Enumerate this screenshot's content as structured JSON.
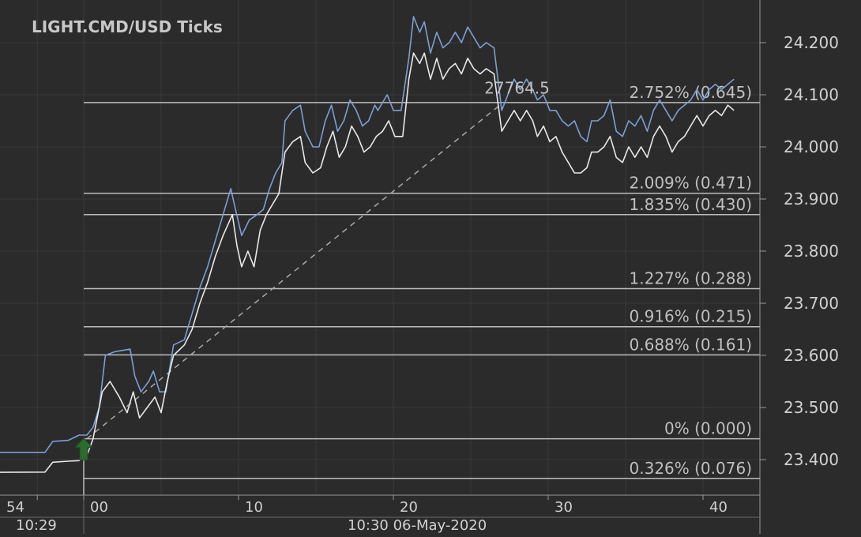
{
  "chart_data": {
    "type": "line",
    "title": "LIGHT.CMD/USD  Ticks",
    "symbol": "LIGHT.CMD/USD",
    "timeframe": "Ticks",
    "x_tick_labels": [
      "54",
      "00",
      "10",
      "20",
      "30",
      "40"
    ],
    "x_sub_labels": [
      "10:29",
      "10:30 06-May-2020"
    ],
    "y_tick_labels": [
      "24.200",
      "24.100",
      "24.000",
      "23.900",
      "23.800",
      "23.700",
      "23.600",
      "23.500",
      "23.400"
    ],
    "y_ticks": [
      24.2,
      24.1,
      24.0,
      23.9,
      23.8,
      23.7,
      23.6,
      23.5,
      23.4
    ],
    "ylim": [
      23.345,
      24.28
    ],
    "grid": true,
    "series": [
      {
        "role": "ask",
        "color": "#7b9fd4",
        "points": [
          [
            -10,
            23.414
          ],
          [
            -2.5,
            23.414
          ],
          [
            -2.0,
            23.435
          ],
          [
            -1.0,
            23.437
          ],
          [
            -0.3,
            23.447
          ],
          [
            0.2,
            23.447
          ],
          [
            0.6,
            23.462
          ],
          [
            1.0,
            23.5
          ],
          [
            1.4,
            23.6
          ],
          [
            2.0,
            23.607
          ],
          [
            3.0,
            23.612
          ],
          [
            3.3,
            23.56
          ],
          [
            3.7,
            23.53
          ],
          [
            4.2,
            23.55
          ],
          [
            4.5,
            23.57
          ],
          [
            4.9,
            23.53
          ],
          [
            5.3,
            23.53
          ],
          [
            5.8,
            23.62
          ],
          [
            6.5,
            23.63
          ],
          [
            7.0,
            23.68
          ],
          [
            7.5,
            23.73
          ],
          [
            8.0,
            23.77
          ],
          [
            8.5,
            23.82
          ],
          [
            9.0,
            23.87
          ],
          [
            9.5,
            23.92
          ],
          [
            9.8,
            23.88
          ],
          [
            10.2,
            23.83
          ],
          [
            10.7,
            23.86
          ],
          [
            11.2,
            23.87
          ],
          [
            11.6,
            23.88
          ],
          [
            12.0,
            23.92
          ],
          [
            12.4,
            23.95
          ],
          [
            12.8,
            23.97
          ],
          [
            13.0,
            24.05
          ],
          [
            13.5,
            24.07
          ],
          [
            14.0,
            24.08
          ],
          [
            14.3,
            24.03
          ],
          [
            14.8,
            24.0
          ],
          [
            15.2,
            24.0
          ],
          [
            15.6,
            24.05
          ],
          [
            16.0,
            24.08
          ],
          [
            16.4,
            24.03
          ],
          [
            16.8,
            24.05
          ],
          [
            17.2,
            24.09
          ],
          [
            17.6,
            24.07
          ],
          [
            18.0,
            24.04
          ],
          [
            18.4,
            24.05
          ],
          [
            18.8,
            24.08
          ],
          [
            19.0,
            24.07
          ],
          [
            19.2,
            24.08
          ],
          [
            19.6,
            24.1
          ],
          [
            20.0,
            24.07
          ],
          [
            20.5,
            24.07
          ],
          [
            21.0,
            24.17
          ],
          [
            21.3,
            24.25
          ],
          [
            21.7,
            24.22
          ],
          [
            22.0,
            24.24
          ],
          [
            22.4,
            24.18
          ],
          [
            22.8,
            24.22
          ],
          [
            23.2,
            24.19
          ],
          [
            23.6,
            24.2
          ],
          [
            24.0,
            24.22
          ],
          [
            24.4,
            24.2
          ],
          [
            24.8,
            24.23
          ],
          [
            25.2,
            24.21
          ],
          [
            25.6,
            24.19
          ],
          [
            26.0,
            24.2
          ],
          [
            26.5,
            24.19
          ],
          [
            27.0,
            24.07
          ],
          [
            27.4,
            24.1
          ],
          [
            27.8,
            24.13
          ],
          [
            28.2,
            24.11
          ],
          [
            28.6,
            24.13
          ],
          [
            29.0,
            24.11
          ],
          [
            29.3,
            24.09
          ],
          [
            29.7,
            24.1
          ],
          [
            30.1,
            24.07
          ],
          [
            30.5,
            24.07
          ],
          [
            30.9,
            24.05
          ],
          [
            31.3,
            24.04
          ],
          [
            31.7,
            24.05
          ],
          [
            32.1,
            24.02
          ],
          [
            32.5,
            24.01
          ],
          [
            32.8,
            24.05
          ],
          [
            33.2,
            24.05
          ],
          [
            33.6,
            24.06
          ],
          [
            34.0,
            24.09
          ],
          [
            34.4,
            24.03
          ],
          [
            34.8,
            24.02
          ],
          [
            35.2,
            24.05
          ],
          [
            35.6,
            24.04
          ],
          [
            36.0,
            24.06
          ],
          [
            36.4,
            24.03
          ],
          [
            36.8,
            24.07
          ],
          [
            37.2,
            24.09
          ],
          [
            37.6,
            24.07
          ],
          [
            38.0,
            24.05
          ],
          [
            38.4,
            24.07
          ],
          [
            38.8,
            24.08
          ],
          [
            39.2,
            24.09
          ],
          [
            39.6,
            24.11
          ],
          [
            40.0,
            24.09
          ],
          [
            40.4,
            24.11
          ],
          [
            40.8,
            24.12
          ],
          [
            41.2,
            24.11
          ],
          [
            41.6,
            24.12
          ],
          [
            42.0,
            24.13
          ]
        ]
      },
      {
        "role": "bid",
        "color": "#e8e8e8",
        "points": [
          [
            -10,
            23.375
          ],
          [
            -2.5,
            23.376
          ],
          [
            -2.0,
            23.395
          ],
          [
            -1.0,
            23.397
          ],
          [
            -0.3,
            23.398
          ],
          [
            0.2,
            23.407
          ],
          [
            0.6,
            23.44
          ],
          [
            1.0,
            23.5
          ],
          [
            1.2,
            23.53
          ],
          [
            1.7,
            23.55
          ],
          [
            2.3,
            23.52
          ],
          [
            2.8,
            23.49
          ],
          [
            3.2,
            23.53
          ],
          [
            3.6,
            23.48
          ],
          [
            4.1,
            23.5
          ],
          [
            4.6,
            23.52
          ],
          [
            5.0,
            23.49
          ],
          [
            5.4,
            23.55
          ],
          [
            5.8,
            23.6
          ],
          [
            6.5,
            23.62
          ],
          [
            7.0,
            23.65
          ],
          [
            7.5,
            23.7
          ],
          [
            8.0,
            23.74
          ],
          [
            8.5,
            23.79
          ],
          [
            9.0,
            23.83
          ],
          [
            9.6,
            23.87
          ],
          [
            9.9,
            23.81
          ],
          [
            10.2,
            23.77
          ],
          [
            10.6,
            23.8
          ],
          [
            11.0,
            23.77
          ],
          [
            11.4,
            23.84
          ],
          [
            11.8,
            23.87
          ],
          [
            12.2,
            23.89
          ],
          [
            12.6,
            23.91
          ],
          [
            13.0,
            23.99
          ],
          [
            13.5,
            24.01
          ],
          [
            14.0,
            24.02
          ],
          [
            14.3,
            23.97
          ],
          [
            14.8,
            23.95
          ],
          [
            15.3,
            23.96
          ],
          [
            15.7,
            24.0
          ],
          [
            16.1,
            24.03
          ],
          [
            16.5,
            23.98
          ],
          [
            16.9,
            24.0
          ],
          [
            17.3,
            24.04
          ],
          [
            17.7,
            24.02
          ],
          [
            18.1,
            23.99
          ],
          [
            18.5,
            24.0
          ],
          [
            18.9,
            24.02
          ],
          [
            19.3,
            24.03
          ],
          [
            19.7,
            24.05
          ],
          [
            20.1,
            24.02
          ],
          [
            20.6,
            24.02
          ],
          [
            21.0,
            24.13
          ],
          [
            21.3,
            24.18
          ],
          [
            21.7,
            24.16
          ],
          [
            22.0,
            24.18
          ],
          [
            22.4,
            24.13
          ],
          [
            22.8,
            24.17
          ],
          [
            23.2,
            24.13
          ],
          [
            23.6,
            24.15
          ],
          [
            24.0,
            24.16
          ],
          [
            24.4,
            24.14
          ],
          [
            24.8,
            24.17
          ],
          [
            25.2,
            24.15
          ],
          [
            25.6,
            24.14
          ],
          [
            26.0,
            24.15
          ],
          [
            26.5,
            24.14
          ],
          [
            27.0,
            24.03
          ],
          [
            27.4,
            24.05
          ],
          [
            27.8,
            24.07
          ],
          [
            28.2,
            24.05
          ],
          [
            28.6,
            24.07
          ],
          [
            29.0,
            24.05
          ],
          [
            29.3,
            24.02
          ],
          [
            29.7,
            24.04
          ],
          [
            30.1,
            24.01
          ],
          [
            30.5,
            24.02
          ],
          [
            30.9,
            23.99
          ],
          [
            31.3,
            23.97
          ],
          [
            31.7,
            23.95
          ],
          [
            32.1,
            23.95
          ],
          [
            32.5,
            23.96
          ],
          [
            32.8,
            23.99
          ],
          [
            33.2,
            23.99
          ],
          [
            33.6,
            24.0
          ],
          [
            34.0,
            24.02
          ],
          [
            34.4,
            23.98
          ],
          [
            34.8,
            23.97
          ],
          [
            35.2,
            24.0
          ],
          [
            35.6,
            23.98
          ],
          [
            36.0,
            24.0
          ],
          [
            36.4,
            23.98
          ],
          [
            36.8,
            24.02
          ],
          [
            37.2,
            24.04
          ],
          [
            37.6,
            24.02
          ],
          [
            38.0,
            23.99
          ],
          [
            38.4,
            24.01
          ],
          [
            38.8,
            24.02
          ],
          [
            39.2,
            24.04
          ],
          [
            39.6,
            24.06
          ],
          [
            40.0,
            24.04
          ],
          [
            40.4,
            24.06
          ],
          [
            40.8,
            24.07
          ],
          [
            41.2,
            24.06
          ],
          [
            41.6,
            24.08
          ],
          [
            42.0,
            24.07
          ]
        ]
      }
    ],
    "trendline": {
      "from": [
        0.2,
        23.44
      ],
      "to": [
        27.0,
        24.083
      ],
      "style": "dashed"
    },
    "fib_levels": [
      {
        "label": "2.752% (0.645)",
        "value": 24.085
      },
      {
        "label": "2.009% (0.471)",
        "value": 23.911
      },
      {
        "label": "1.835% (0.430)",
        "value": 23.87
      },
      {
        "label": "1.227% (0.288)",
        "value": 23.728
      },
      {
        "label": "0.916% (0.215)",
        "value": 23.655
      },
      {
        "label": "0.688% (0.161)",
        "value": 23.601
      },
      {
        "label": "0% (0.000)",
        "value": 23.44
      },
      {
        "label": "0.326% (0.076)",
        "value": 23.364
      }
    ],
    "annotation": {
      "text": "27764.5",
      "x": 27.0,
      "y": 24.113
    },
    "marker": {
      "type": "buy-arrow",
      "color": "#2e6b2e",
      "x": 0.0,
      "y": 23.42
    }
  }
}
